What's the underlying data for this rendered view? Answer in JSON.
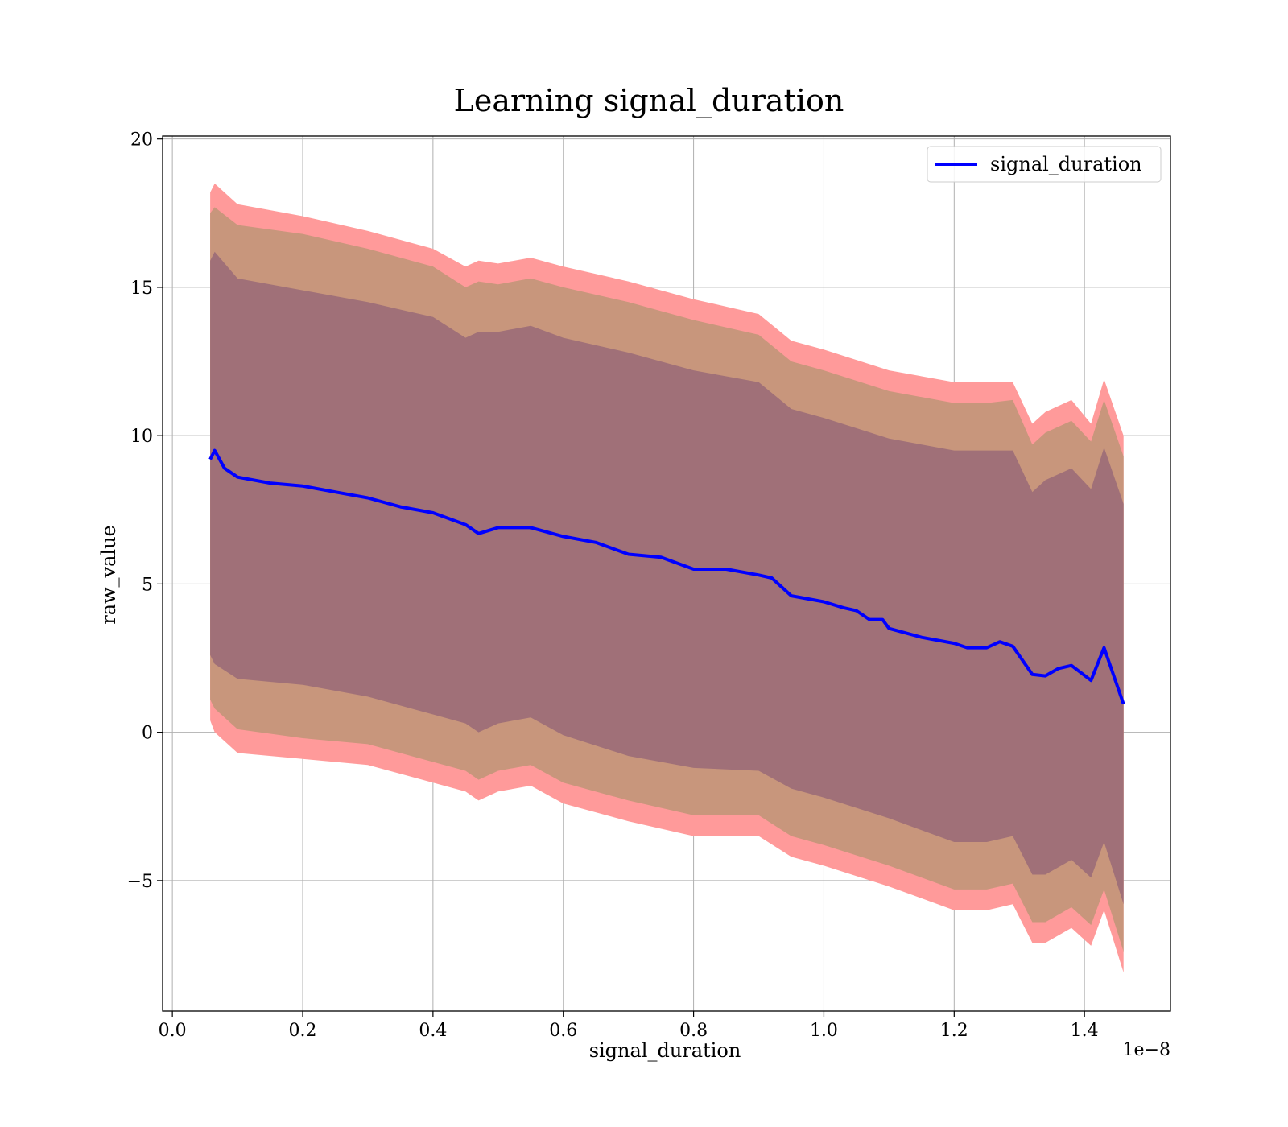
{
  "chart_data": {
    "type": "line",
    "title": "Learning signal_duration",
    "xlabel": "signal_duration",
    "ylabel": "raw_value",
    "x_offset_text": "1e−8",
    "xlim": [
      -0.015,
      1.532
    ],
    "ylim": [
      -9.4,
      20.1
    ],
    "x_ticks": [
      0.0,
      0.2,
      0.4,
      0.6,
      0.8,
      1.0,
      1.2,
      1.4
    ],
    "x_tick_labels": [
      "0.0",
      "0.2",
      "0.4",
      "0.6",
      "0.8",
      "1.0",
      "1.2",
      "1.4"
    ],
    "y_ticks": [
      -5,
      0,
      5,
      10,
      15,
      20
    ],
    "y_tick_labels": [
      "−5",
      "0",
      "5",
      "10",
      "15",
      "20"
    ],
    "grid": true,
    "legend_position": "top-right",
    "series": [
      {
        "name": "signal_duration",
        "color": "#0000ff",
        "x": [
          0.058,
          0.065,
          0.07,
          0.08,
          0.1,
          0.15,
          0.2,
          0.25,
          0.3,
          0.35,
          0.4,
          0.45,
          0.47,
          0.5,
          0.55,
          0.6,
          0.65,
          0.7,
          0.75,
          0.8,
          0.85,
          0.9,
          0.92,
          0.95,
          1.0,
          1.03,
          1.05,
          1.07,
          1.09,
          1.1,
          1.15,
          1.2,
          1.22,
          1.25,
          1.27,
          1.29,
          1.32,
          1.34,
          1.36,
          1.38,
          1.41,
          1.43,
          1.46
        ],
        "y": [
          9.2,
          9.5,
          9.3,
          8.9,
          8.6,
          8.4,
          8.3,
          8.1,
          7.9,
          7.6,
          7.4,
          7.0,
          6.7,
          6.9,
          6.9,
          6.6,
          6.4,
          6.0,
          5.9,
          5.5,
          5.5,
          5.3,
          5.2,
          4.6,
          4.4,
          4.2,
          4.1,
          3.8,
          3.8,
          3.5,
          3.2,
          3.0,
          2.85,
          2.85,
          3.05,
          2.9,
          1.95,
          1.9,
          2.15,
          2.25,
          1.75,
          2.85,
          0.95
        ]
      }
    ],
    "bands": [
      {
        "label": "outer band",
        "color": "#ff9a9a",
        "x": [
          0.058,
          0.065,
          0.1,
          0.2,
          0.3,
          0.4,
          0.45,
          0.47,
          0.5,
          0.55,
          0.6,
          0.7,
          0.8,
          0.9,
          0.95,
          1.0,
          1.1,
          1.2,
          1.25,
          1.29,
          1.32,
          1.34,
          1.38,
          1.41,
          1.43,
          1.46
        ],
        "upper": [
          18.2,
          18.5,
          17.8,
          17.4,
          16.9,
          16.3,
          15.7,
          15.9,
          15.8,
          16.0,
          15.7,
          15.2,
          14.6,
          14.1,
          13.2,
          12.9,
          12.2,
          11.8,
          11.8,
          11.8,
          10.4,
          10.8,
          11.2,
          10.4,
          11.9,
          10.0
        ],
        "lower": [
          0.4,
          0.0,
          -0.7,
          -0.9,
          -1.1,
          -1.7,
          -2.0,
          -2.3,
          -2.0,
          -1.8,
          -2.4,
          -3.0,
          -3.5,
          -3.5,
          -4.2,
          -4.5,
          -5.2,
          -6.0,
          -6.0,
          -5.8,
          -7.1,
          -7.1,
          -6.6,
          -7.2,
          -6.0,
          -8.1
        ]
      },
      {
        "label": "middle band",
        "color": "#c8967c",
        "x": [
          0.058,
          0.065,
          0.1,
          0.2,
          0.3,
          0.4,
          0.45,
          0.47,
          0.5,
          0.55,
          0.6,
          0.7,
          0.8,
          0.9,
          0.95,
          1.0,
          1.1,
          1.2,
          1.25,
          1.29,
          1.32,
          1.34,
          1.38,
          1.41,
          1.43,
          1.46
        ],
        "upper": [
          17.5,
          17.7,
          17.1,
          16.8,
          16.3,
          15.7,
          15.0,
          15.2,
          15.1,
          15.3,
          15.0,
          14.5,
          13.9,
          13.4,
          12.5,
          12.2,
          11.5,
          11.1,
          11.1,
          11.2,
          9.7,
          10.1,
          10.5,
          9.8,
          11.2,
          9.3
        ],
        "lower": [
          1.1,
          0.8,
          0.1,
          -0.2,
          -0.4,
          -1.0,
          -1.3,
          -1.6,
          -1.3,
          -1.1,
          -1.7,
          -2.3,
          -2.8,
          -2.8,
          -3.5,
          -3.8,
          -4.5,
          -5.3,
          -5.3,
          -5.1,
          -6.4,
          -6.4,
          -5.9,
          -6.5,
          -5.3,
          -7.4
        ]
      },
      {
        "label": "inner band",
        "color": "#a07078",
        "x": [
          0.058,
          0.065,
          0.1,
          0.2,
          0.3,
          0.4,
          0.45,
          0.47,
          0.5,
          0.55,
          0.6,
          0.7,
          0.8,
          0.9,
          0.95,
          1.0,
          1.1,
          1.2,
          1.25,
          1.29,
          1.32,
          1.34,
          1.38,
          1.41,
          1.43,
          1.46
        ],
        "upper": [
          15.9,
          16.2,
          15.3,
          14.9,
          14.5,
          14.0,
          13.3,
          13.5,
          13.5,
          13.7,
          13.3,
          12.8,
          12.2,
          11.8,
          10.9,
          10.6,
          9.9,
          9.5,
          9.5,
          9.5,
          8.1,
          8.5,
          8.9,
          8.2,
          9.6,
          7.7
        ],
        "lower": [
          2.6,
          2.3,
          1.8,
          1.6,
          1.2,
          0.6,
          0.3,
          0.0,
          0.3,
          0.5,
          -0.1,
          -0.8,
          -1.2,
          -1.3,
          -1.9,
          -2.2,
          -2.9,
          -3.7,
          -3.7,
          -3.5,
          -4.8,
          -4.8,
          -4.3,
          -4.9,
          -3.7,
          -5.8
        ]
      }
    ]
  }
}
